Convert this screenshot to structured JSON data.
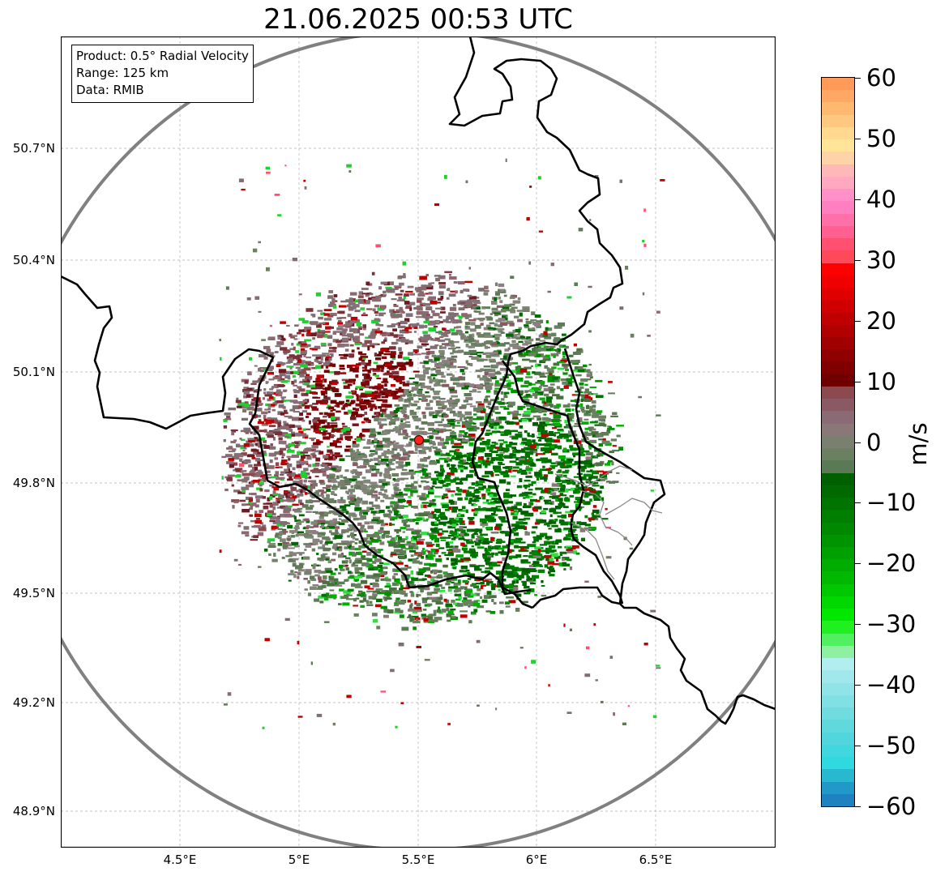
{
  "title": "21.06.2025 00:53 UTC",
  "info_box": {
    "product": "Product: 0.5° Radial Velocity",
    "range": "Range: 125 km",
    "data": "Data: RMIB"
  },
  "map": {
    "latitude_labels": [
      "50.7°N",
      "50.4°N",
      "50.1°N",
      "49.8°N",
      "49.5°N",
      "49.2°N",
      "48.9°N"
    ],
    "longitude_labels": [
      "4.5°E",
      "5°E",
      "5.5°E",
      "6°E",
      "6.5°E"
    ],
    "radar_site": "red-dot-marker",
    "range_ring_color": "#808080",
    "border_color": "#000000"
  },
  "colorbar": {
    "unit": "m/s",
    "min": -60,
    "max": 60,
    "tick_labels": [
      "60",
      "50",
      "40",
      "30",
      "20",
      "10",
      "0",
      "−10",
      "−20",
      "−30",
      "−40",
      "−50",
      "−60"
    ],
    "tick_values": [
      60,
      50,
      40,
      30,
      20,
      10,
      0,
      -10,
      -20,
      -30,
      -40,
      -50,
      -60
    ],
    "colors_top_to_bottom": [
      "#ff9a58",
      "#ffa865",
      "#ffb870",
      "#ffc880",
      "#ffd98f",
      "#ffe49a",
      "#ffd3a8",
      "#ffb8b8",
      "#ffa8c0",
      "#ff90c8",
      "#ff80c0",
      "#ff70a8",
      "#ff6090",
      "#ff5070",
      "#ff4858",
      "#ff0000",
      "#f00000",
      "#e00000",
      "#d00000",
      "#c00000",
      "#b00000",
      "#a00000",
      "#900000",
      "#800000",
      "#700000",
      "#8a4a50",
      "#8a5a64",
      "#8a6a74",
      "#8a7878",
      "#7a8070",
      "#6a8060",
      "#5a7a55",
      "#006000",
      "#006a00",
      "#007400",
      "#007e00",
      "#008800",
      "#009400",
      "#00a000",
      "#00ac00",
      "#00b800",
      "#00c800",
      "#00d800",
      "#00e800",
      "#20f020",
      "#50f060",
      "#8ef0a0",
      "#b0eef0",
      "#a0e8ec",
      "#90e4e8",
      "#80e0e4",
      "#70dce0",
      "#60d8dc",
      "#50d6dc",
      "#40d8de",
      "#30d8e0",
      "#28b8d0",
      "#2098c8",
      "#1e82c0"
    ]
  }
}
